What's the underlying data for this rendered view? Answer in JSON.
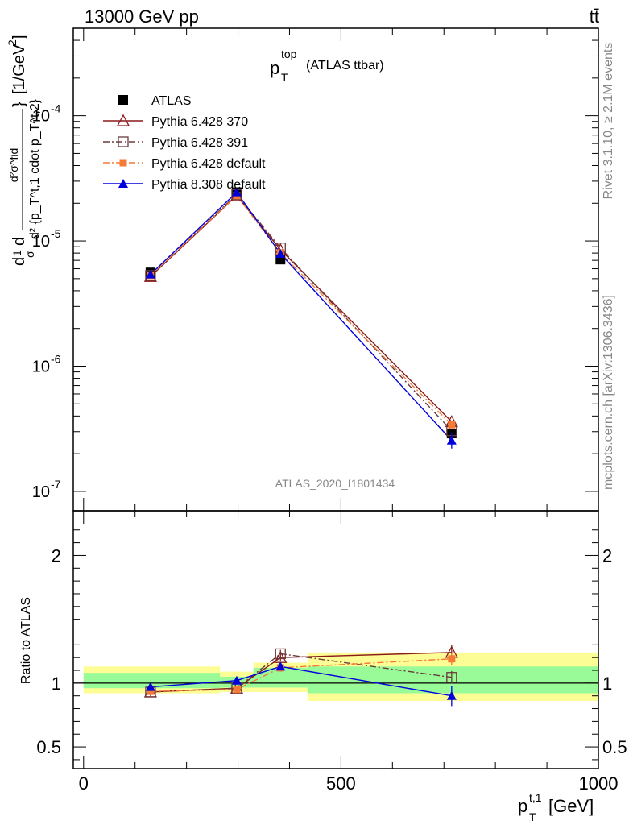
{
  "header": {
    "energy_label": "13000 GeV pp",
    "process_label": "tt̄"
  },
  "side_labels": {
    "rivet": "Rivet 3.1.10, ≥ 2.1M events",
    "source": "mcplots.cern.ch [arXiv:1306.3436]"
  },
  "chart_data": [
    {
      "type": "line",
      "panel": "main",
      "title": "p_T^top (ATLAS ttbar)",
      "title_main": "p",
      "title_sub": "T",
      "title_sup": "top",
      "title_suffix": "(ATLAS ttbar)",
      "watermark": "ATLAS_2020_I1801434",
      "ylabel": "d²σ^fid / dσ d² {p_T^t,1 cdot p_T^t,2} [1/GeV²]",
      "ylabel_unit": "[1/GeV",
      "ylabel_parts": {
        "d": "d",
        "one": "1",
        "sigma": "σ",
        "num_frac": "d²σ^fid",
        "den_frac": "d² {p_T^t,1 cdot p_T^t,2}",
        "close_brace": "}"
      },
      "yscale": "log",
      "ylim": [
        7e-08,
        0.0005
      ],
      "ytick_labels": [
        "10^-7",
        "10^-6",
        "10^-5",
        "10^-4"
      ],
      "xlim": [
        -20,
        1000
      ],
      "x": [
        130,
        297.5,
        382.5,
        715
      ],
      "xerr": [
        [
          0,
          265
        ],
        [
          265,
          330
        ],
        [
          330,
          435
        ],
        [
          435,
          1000
        ]
      ],
      "series": [
        {
          "name": "ATLAS",
          "marker": "square-filled",
          "color": "#000000",
          "line": "none",
          "values": [
            5.6e-06,
            2.45e-05,
            7.1e-06,
            2.9e-07
          ]
        },
        {
          "name": "Pythia 6.428 370",
          "marker": "triangle-open",
          "color": "#8b1a1a",
          "line": "solid",
          "values": [
            5.2e-06,
            2.3e-05,
            8.5e-06,
            3.6e-07
          ]
        },
        {
          "name": "Pythia 6.428 391",
          "marker": "square-open",
          "color": "#6b3a3a",
          "line": "dashdot",
          "values": [
            5.3e-06,
            2.35e-05,
            8.8e-06,
            3.05e-07
          ]
        },
        {
          "name": "Pythia 6.428 default",
          "marker": "square-filled-small",
          "color": "#f47a36",
          "line": "dashdot",
          "values": [
            5.3e-06,
            2.3e-05,
            8e-06,
            3.4e-07
          ]
        },
        {
          "name": "Pythia 8.308 default",
          "marker": "triangle-filled",
          "color": "#0000dd",
          "line": "solid",
          "values": [
            5.4e-06,
            2.45e-05,
            7.9e-06,
            2.55e-07
          ]
        }
      ]
    },
    {
      "type": "line",
      "panel": "ratio",
      "ylabel": "Ratio to ATLAS",
      "xlabel": "p_T^t,1 [GeV]",
      "xlabel_main": "p",
      "xlabel_sub": "T",
      "xlabel_sup": "t,1",
      "xlabel_unit": "[GeV]",
      "xlim": [
        -20,
        1000
      ],
      "ylim": [
        0.33,
        2.35
      ],
      "x_tick_labels": [
        "0",
        "500",
        "1000"
      ],
      "y_tick_labels": [
        "0.5",
        "1",
        "2"
      ],
      "uncertainty_bands": [
        {
          "x_range": [
            0,
            265
          ],
          "inner": [
            0.96,
            1.08
          ],
          "outer": [
            0.92,
            1.13
          ]
        },
        {
          "x_range": [
            265,
            330
          ],
          "inner": [
            0.965,
            1.05
          ],
          "outer": [
            0.93,
            1.09
          ]
        },
        {
          "x_range": [
            330,
            435
          ],
          "inner": [
            0.965,
            1.12
          ],
          "outer": [
            0.93,
            1.16
          ]
        },
        {
          "x_range": [
            435,
            1000
          ],
          "inner": [
            0.92,
            1.13
          ],
          "outer": [
            0.86,
            1.24
          ]
        }
      ],
      "series": [
        {
          "name": "Pythia 6.428 370",
          "values": [
            0.93,
            0.96,
            1.2,
            1.24
          ],
          "err": [
            0.03,
            0.02,
            0.03,
            0.06
          ]
        },
        {
          "name": "Pythia 6.428 391",
          "values": [
            0.93,
            0.96,
            1.23,
            1.045
          ],
          "err": [
            0.03,
            0.02,
            0.03,
            0.05
          ]
        },
        {
          "name": "Pythia 6.428 default",
          "values": [
            0.935,
            0.95,
            1.12,
            1.19
          ],
          "err": [
            0.03,
            0.02,
            0.03,
            0.05
          ]
        },
        {
          "name": "Pythia 8.308 default",
          "values": [
            0.97,
            1.02,
            1.13,
            0.9
          ],
          "err": [
            0.03,
            0.02,
            0.03,
            0.08
          ]
        }
      ]
    }
  ]
}
